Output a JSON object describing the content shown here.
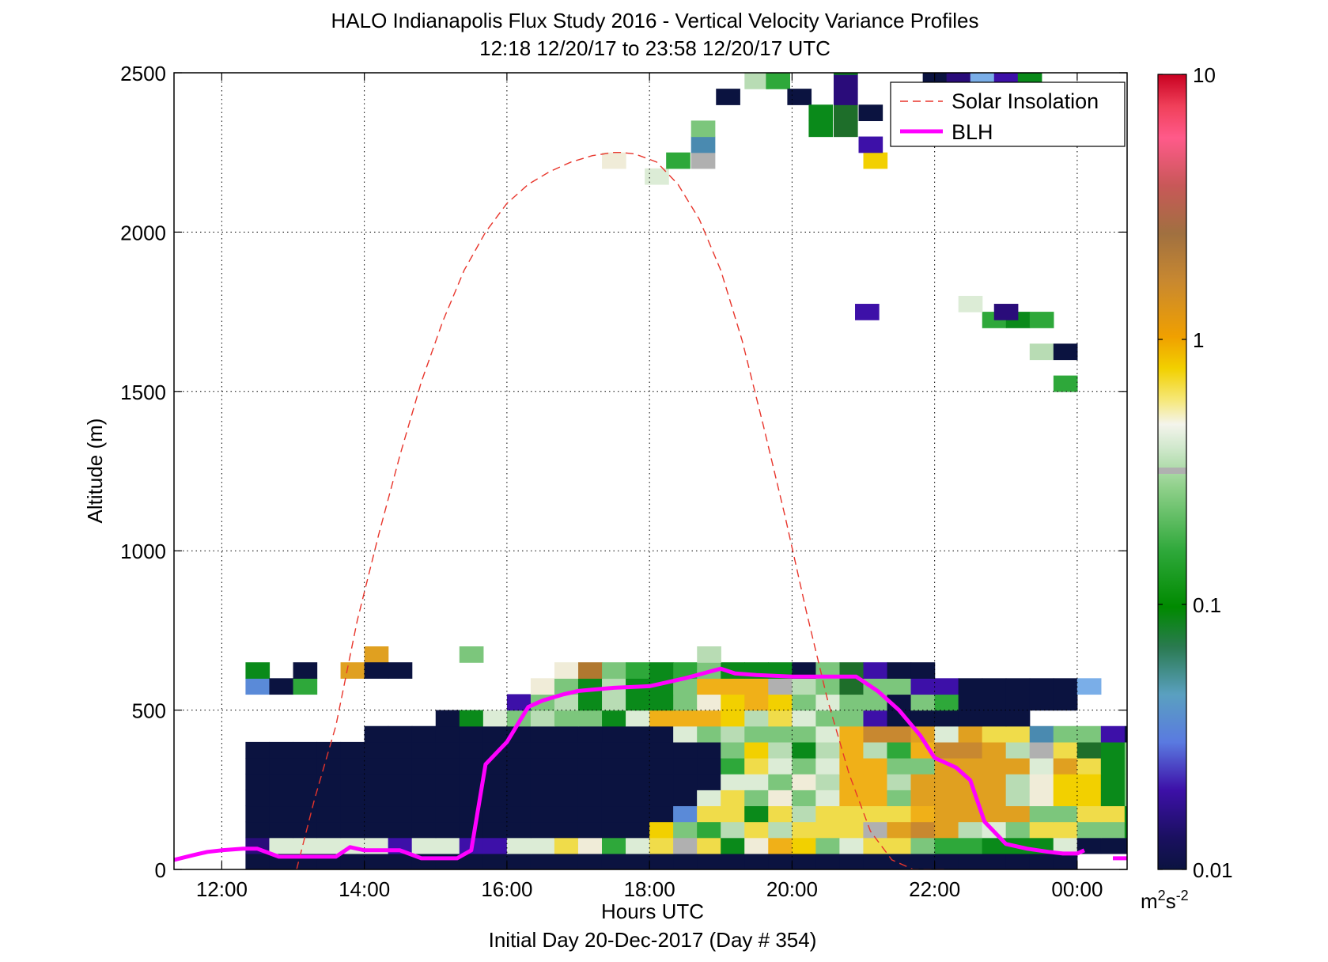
{
  "chart_data": {
    "type": "heatmap",
    "title": "HALO Indianapolis Flux Study 2016 - Vertical Velocity Variance Profiles",
    "subtitle": "12:18 12/20/17 to 23:58 12/20/17  UTC",
    "xlabel": "Hours UTC",
    "xlabel2": "Initial Day 20-Dec-2017 (Day # 354)",
    "ylabel": "Altitude (m)",
    "xlim": [
      11.33,
      24.7
    ],
    "ylim": [
      0,
      2500
    ],
    "x_ticks": [
      12,
      14,
      16,
      18,
      20,
      22,
      24
    ],
    "x_tick_labels": [
      "12:00",
      "14:00",
      "16:00",
      "18:00",
      "20:00",
      "22:00",
      "00:00"
    ],
    "y_ticks": [
      0,
      500,
      1000,
      1500,
      2000,
      2500
    ],
    "y_tick_labels": [
      "0",
      "500",
      "1000",
      "1500",
      "2000",
      "2500"
    ],
    "grid": true,
    "legend_placement": "top-right",
    "legend": [
      {
        "name": "Solar Insolation",
        "color": "#e8352b",
        "style": "dashed"
      },
      {
        "name": "BLH",
        "color": "#ff00ff",
        "style": "solid"
      }
    ],
    "colorbar": {
      "scale": "log",
      "min": 0.01,
      "max": 10,
      "tick_values": [
        0.01,
        0.1,
        1,
        10
      ],
      "tick_labels": [
        "0.01",
        "0.1",
        "1",
        "10"
      ],
      "unit_base": "m",
      "unit_sup1": "2",
      "unit_mid": "s",
      "unit_sup2": "-2"
    },
    "colors": {
      "n": "#0b1340",
      "v": "#3d10a8",
      "i": "#2a0c7a",
      "b": "#5a8ad8",
      "l": "#7aaee8",
      "t": "#4a8ab0",
      "g": "#0a8a1a",
      "G": "#2ea83a",
      "e": "#1e6e2a",
      "m": "#7cc67c",
      "p": "#b8dcb4",
      "w": "#dcecd6",
      "c": "#f0ecd8",
      "y": "#f2d000",
      "Y": "#f0dc4a",
      "o": "#f0b018",
      "O": "#e0a020",
      "d": "#c88830",
      "r": "#b07830",
      "s": "#b0b0b0"
    },
    "bin_width_hours": 0.3333,
    "bin_height_m": 50,
    "heatmap_rows": [
      {
        "alt": 25,
        "start": 12.333,
        "cells": "nnnnnnnnnnnnnnnnnnnnnnnnnnnnnnnnnnn"
      },
      {
        "alt": 75,
        "start": 12.333,
        "cells": "iwwwwwvwwvvwwYcGwYsYgcoymwYYmGGgggwnnnn"
      },
      {
        "alt": 125,
        "start": 12.333,
        "cells": "nnnnnnnnnnnnnnnnnymGpYpYYYsOdOpwmYYmmgGGgGnnnn"
      },
      {
        "alt": 175,
        "start": 12.333,
        "cells": "nnnnnnnnnnnnnnnnnnbYYgYpYYYYoOOOOmmYYgGGGGnnnn"
      },
      {
        "alt": 225,
        "start": 12.333,
        "cells": "nnnnnnnnnnnnnnnnnnnwYmcmwoomOOOOpcyygmmgGinnn"
      },
      {
        "alt": 275,
        "start": 12.333,
        "cells": "nnnnnnnnnnnnnnnnnnnnwwmcpoopOOOOpcyygmmvgGnnn"
      },
      {
        "alt": 325,
        "start": 12.333,
        "cells": "nnnnnnnnnnnnnnnnnnnnGYwmwoommOOOOwOYgmmnmnnnn"
      },
      {
        "alt": 375,
        "start": 12.333,
        "cells": "nnnnnnnnnnnnnnnnnnnnmypgpopGoddOpsYegmmvtnnnn"
      },
      {
        "alt": 425,
        "start": 14.0,
        "cells": "nnnnnnnnnnnnnwmpmmmwoddOwOYYtmmvnnnnn"
      },
      {
        "alt": 475,
        "start": 15.0,
        "cells": "ngwmpmmgwoooypYwmmvnnnnnn"
      },
      {
        "alt": 525,
        "start": 16.0,
        "cells": "vmpgpggmcyoymwmmnmGnnnnn"
      },
      {
        "alt": 575,
        "start": 16.333,
        "cells": "cmgpggmooospmemmvvnnnnnl"
      },
      {
        "alt": 625,
        "start": 16.667,
        "cells": "crmGgGmgggnmevnn"
      },
      {
        "alt": 675,
        "start": 18.667,
        "cells": "p"
      },
      {
        "alt": 1525,
        "start": 23.667,
        "cells": "G"
      },
      {
        "alt": 1625,
        "start": 23.333,
        "cells": "pn"
      },
      {
        "alt": 1725,
        "start": 22.667,
        "cells": "GgG"
      },
      {
        "alt": 1775,
        "start": 22.333,
        "cells": "w"
      },
      {
        "alt": 2225,
        "start": 21.0,
        "cells": "y"
      }
    ],
    "sparse_cells": [
      {
        "x": 12.5,
        "alt": 575,
        "c": "b"
      },
      {
        "x": 12.5,
        "alt": 625,
        "c": "g"
      },
      {
        "x": 12.833,
        "alt": 575,
        "c": "n"
      },
      {
        "x": 13.167,
        "alt": 575,
        "c": "G"
      },
      {
        "x": 13.167,
        "alt": 625,
        "c": "n"
      },
      {
        "x": 13.833,
        "alt": 625,
        "c": "O"
      },
      {
        "x": 14.167,
        "alt": 675,
        "c": "O"
      },
      {
        "x": 14.167,
        "alt": 625,
        "c": "n"
      },
      {
        "x": 14.5,
        "alt": 625,
        "c": "n"
      },
      {
        "x": 15.5,
        "alt": 675,
        "c": "m"
      },
      {
        "x": 17.5,
        "alt": 2225,
        "c": "c"
      },
      {
        "x": 18.1,
        "alt": 2175,
        "c": "w"
      },
      {
        "x": 18.4,
        "alt": 2225,
        "c": "G"
      },
      {
        "x": 18.75,
        "alt": 2225,
        "c": "s"
      },
      {
        "x": 18.75,
        "alt": 2275,
        "c": "t"
      },
      {
        "x": 18.75,
        "alt": 2325,
        "c": "m"
      },
      {
        "x": 19.1,
        "alt": 2425,
        "c": "n"
      },
      {
        "x": 19.5,
        "alt": 2475,
        "c": "p"
      },
      {
        "x": 19.8,
        "alt": 2475,
        "c": "G"
      },
      {
        "x": 20.1,
        "alt": 2425,
        "c": "n"
      },
      {
        "x": 20.4,
        "alt": 2325,
        "c": "g"
      },
      {
        "x": 20.4,
        "alt": 2375,
        "c": "g"
      },
      {
        "x": 20.75,
        "alt": 2325,
        "c": "e"
      },
      {
        "x": 20.75,
        "alt": 2375,
        "c": "e"
      },
      {
        "x": 20.75,
        "alt": 2425,
        "c": "i"
      },
      {
        "x": 20.75,
        "alt": 2475,
        "c": "i"
      },
      {
        "x": 20.75,
        "alt": 2520,
        "c": "g"
      },
      {
        "x": 21.1,
        "alt": 2375,
        "c": "n"
      },
      {
        "x": 21.1,
        "alt": 2275,
        "c": "v"
      },
      {
        "x": 21.05,
        "alt": 1750,
        "c": "v"
      },
      {
        "x": 23.0,
        "alt": 1750,
        "c": "i"
      },
      {
        "x": 22.0,
        "alt": 2490,
        "c": "n"
      },
      {
        "x": 22.333,
        "alt": 2490,
        "c": "i"
      },
      {
        "x": 22.667,
        "alt": 2490,
        "c": "l"
      },
      {
        "x": 23.0,
        "alt": 2490,
        "c": "v"
      },
      {
        "x": 23.333,
        "alt": 2490,
        "c": "g"
      }
    ],
    "blh": {
      "x": [
        11.33,
        11.6,
        11.8,
        12.0,
        12.3,
        12.5,
        12.8,
        13.0,
        13.3,
        13.6,
        13.8,
        14.0,
        14.2,
        14.5,
        14.8,
        15.0,
        15.3,
        15.5,
        15.7,
        16.0,
        16.3,
        16.5,
        16.8,
        17.0,
        17.5,
        18.0,
        18.5,
        19.0,
        19.2,
        19.5,
        20.0,
        20.5,
        20.9,
        21.2,
        21.5,
        21.8,
        22.0,
        22.3,
        22.5,
        22.7,
        23.0,
        23.3,
        23.6,
        23.8,
        24.0,
        24.1
      ],
      "y": [
        30,
        45,
        55,
        60,
        65,
        65,
        40,
        40,
        40,
        40,
        70,
        60,
        60,
        60,
        35,
        35,
        35,
        60,
        330,
        400,
        510,
        530,
        550,
        560,
        570,
        575,
        600,
        630,
        615,
        610,
        605,
        605,
        605,
        560,
        500,
        420,
        350,
        320,
        280,
        150,
        80,
        65,
        55,
        50,
        50,
        60
      ],
      "tail_x": [
        24.5,
        24.7
      ],
      "tail_y": [
        35,
        35
      ]
    },
    "solar": {
      "x": [
        13.05,
        13.3,
        13.6,
        13.9,
        14.2,
        14.5,
        14.8,
        15.1,
        15.4,
        15.7,
        16.0,
        16.3,
        16.6,
        16.9,
        17.2,
        17.5,
        17.6,
        17.8,
        18.1,
        18.4,
        18.7,
        19.0,
        19.3,
        19.6,
        19.9,
        20.2,
        20.5,
        20.8,
        21.1,
        21.4,
        21.7,
        22.0,
        22.2
      ],
      "y": [
        0,
        220,
        450,
        780,
        1050,
        1300,
        1530,
        1720,
        1880,
        2000,
        2090,
        2150,
        2190,
        2220,
        2240,
        2250,
        2250,
        2245,
        2220,
        2150,
        2040,
        1880,
        1660,
        1390,
        1110,
        810,
        530,
        300,
        120,
        30,
        0,
        0,
        0
      ]
    }
  }
}
